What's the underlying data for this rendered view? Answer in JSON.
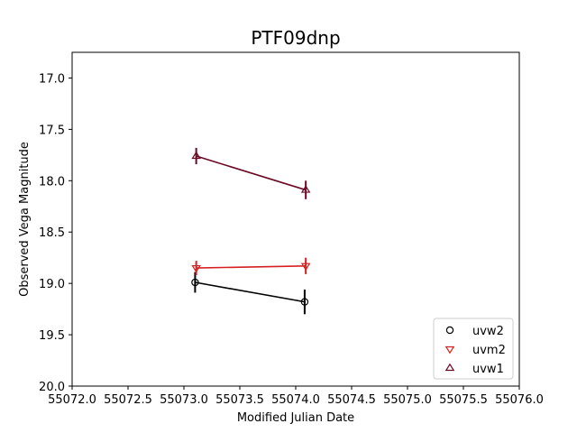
{
  "chart_data": {
    "type": "scatter",
    "title": "PTF09dnp",
    "xlabel": "Modified Julian Date",
    "ylabel": "Observed Vega Magnitude",
    "xlim": [
      55072.0,
      55076.0
    ],
    "ylim": [
      20.0,
      16.75
    ],
    "y_inverted": true,
    "grid": false,
    "legend_position": "lower-right",
    "xticks": [
      "55072.0",
      "55072.5",
      "55073.0",
      "55073.5",
      "55074.0",
      "55074.5",
      "55075.0",
      "55075.5",
      "55076.0"
    ],
    "yticks": [
      "17.0",
      "17.5",
      "18.0",
      "18.5",
      "19.0",
      "19.5",
      "20.0"
    ],
    "series": [
      {
        "name": "uvw2",
        "marker": "circle",
        "color": "#000000",
        "points": [
          {
            "x": 55073.1,
            "y": 18.99,
            "err": 0.1
          },
          {
            "x": 55074.08,
            "y": 19.18,
            "err": 0.12
          }
        ]
      },
      {
        "name": "uvm2",
        "marker": "triangle-down",
        "color": "#d62020",
        "points": [
          {
            "x": 55073.11,
            "y": 18.85,
            "err": 0.07
          },
          {
            "x": 55074.09,
            "y": 18.83,
            "err": 0.08
          }
        ]
      },
      {
        "name": "uvw1",
        "marker": "triangle-up",
        "color": "#6b0a25",
        "points": [
          {
            "x": 55073.11,
            "y": 17.76,
            "err": 0.08
          },
          {
            "x": 55074.09,
            "y": 18.09,
            "err": 0.09
          }
        ]
      }
    ]
  }
}
